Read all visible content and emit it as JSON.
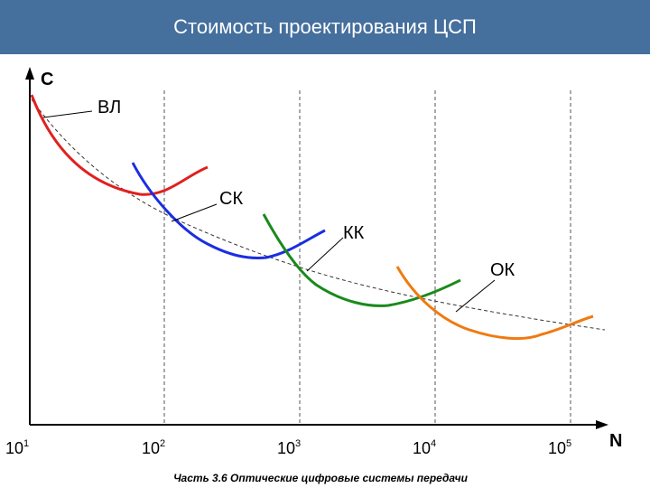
{
  "header": {
    "title": "Стоимость проектирования ЦСП"
  },
  "axes": {
    "y_label": "С",
    "x_label": "N",
    "x_ticks": [
      {
        "base": "10",
        "exp": "1"
      },
      {
        "base": "10",
        "exp": "2"
      },
      {
        "base": "10",
        "exp": "3"
      },
      {
        "base": "10",
        "exp": "4"
      },
      {
        "base": "10",
        "exp": "5"
      }
    ]
  },
  "curves": [
    {
      "label": "ВЛ"
    },
    {
      "label": "СК"
    },
    {
      "label": "КК"
    },
    {
      "label": "ОК"
    }
  ],
  "footer": {
    "text": "Часть 3.6 Оптические цифровые системы передачи"
  }
}
